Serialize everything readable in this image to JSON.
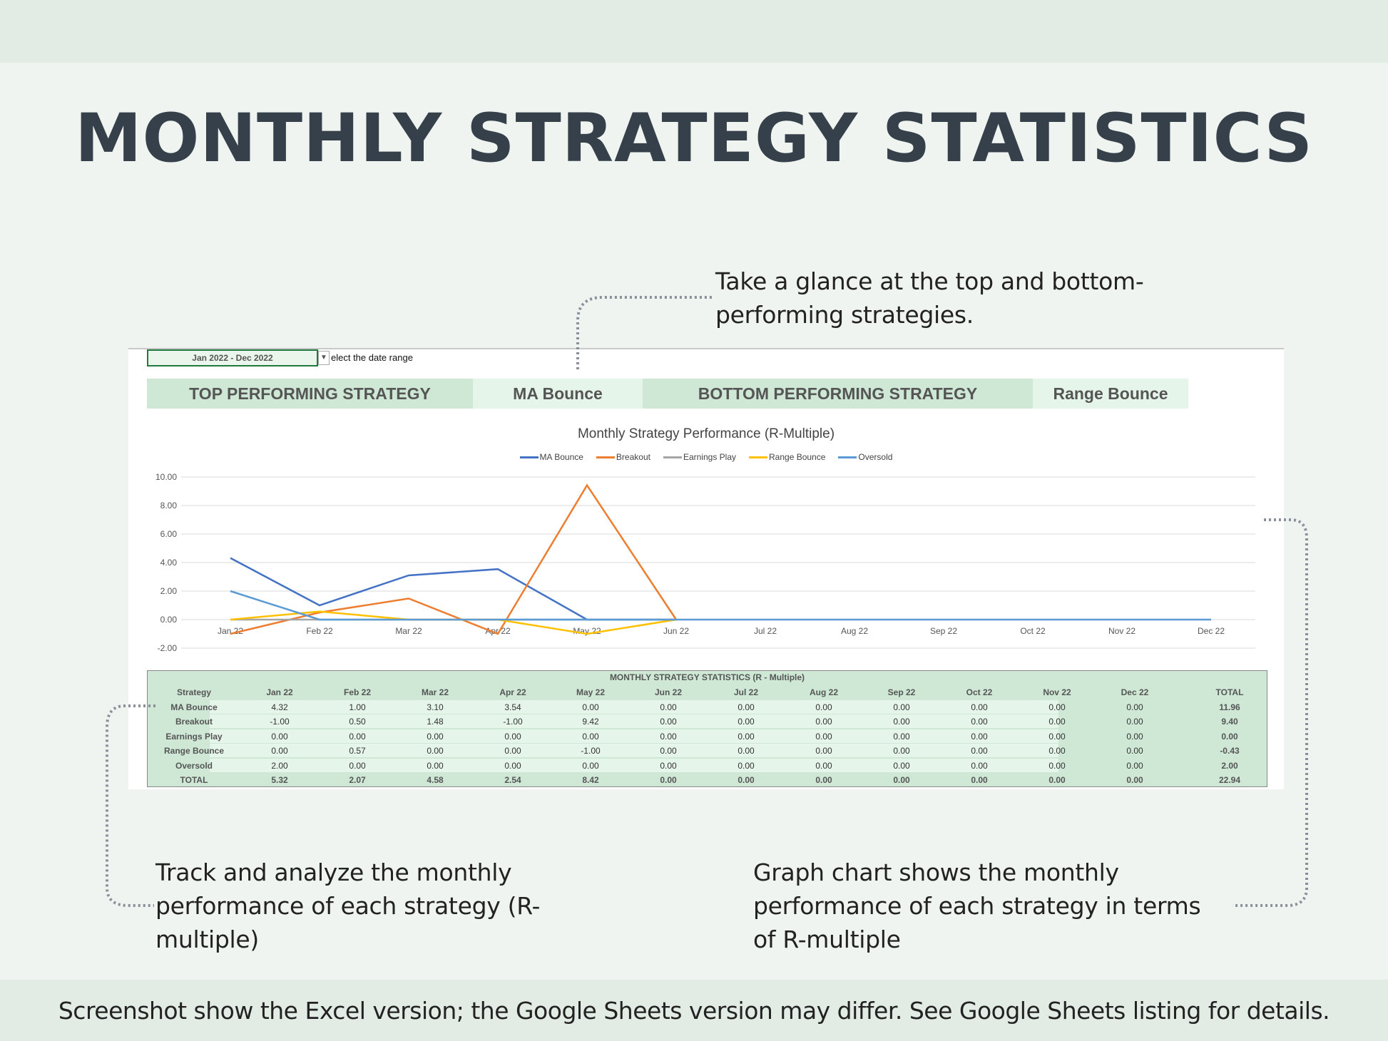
{
  "title": "MONTHLY STRATEGY STATISTICS",
  "notes": {
    "top": [
      "Take a glance at the top and bottom-",
      "performing strategies."
    ],
    "left": [
      "Track and analyze the monthly",
      "performance of each strategy (R-",
      "multiple)"
    ],
    "right": [
      "Graph chart shows the monthly",
      "performance of each strategy in terms",
      "of R-multiple"
    ]
  },
  "footer": "Screenshot show the Excel version; the Google Sheets version may differ.   See Google Sheets listing for details.",
  "sheet": {
    "date_range": "Jan 2022 - Dec 2022",
    "date_hint": "elect the date range",
    "top_label": "TOP PERFORMING STRATEGY",
    "top_value": "MA Bounce",
    "bottom_label": "BOTTOM PERFORMING STRATEGY",
    "bottom_value": "Range Bounce"
  },
  "chart_data": {
    "type": "line",
    "title": "Monthly Strategy Performance (R-Multiple)",
    "categories": [
      "Jan 22",
      "Feb 22",
      "Mar 22",
      "Apr 22",
      "May 22",
      "Jun 22",
      "Jul 22",
      "Aug 22",
      "Sep 22",
      "Oct 22",
      "Nov 22",
      "Dec 22"
    ],
    "ylim": [
      -2,
      10
    ],
    "yticks": [
      "-2.00",
      "0.00",
      "2.00",
      "4.00",
      "6.00",
      "8.00",
      "10.00"
    ],
    "legend": "top",
    "series": [
      {
        "name": "MA Bounce",
        "color": "#4472c4",
        "values": [
          4.32,
          1.0,
          3.1,
          3.54,
          0,
          0,
          null,
          null,
          null,
          null,
          null,
          null
        ]
      },
      {
        "name": "Breakout",
        "color": "#ed7d31",
        "values": [
          -1.0,
          0.5,
          1.48,
          -1.0,
          9.42,
          0,
          null,
          null,
          null,
          null,
          null,
          null
        ]
      },
      {
        "name": "Earnings Play",
        "color": "#a5a5a5",
        "values": [
          0,
          0,
          0,
          0,
          0,
          0,
          null,
          null,
          null,
          null,
          null,
          null
        ]
      },
      {
        "name": "Range Bounce",
        "color": "#ffc000",
        "values": [
          0,
          0.57,
          0,
          0,
          -1.0,
          0,
          null,
          null,
          null,
          null,
          null,
          null
        ]
      },
      {
        "name": "Oversold",
        "color": "#5b9bd5",
        "values": [
          2.0,
          0,
          0,
          0,
          0,
          0,
          0,
          0,
          0,
          0,
          0,
          0
        ]
      }
    ]
  },
  "table": {
    "title": "MONTHLY STRATEGY STATISTICS (R - Multiple)",
    "headers": [
      "Strategy",
      "Jan 22",
      "Feb 22",
      "Mar 22",
      "Apr 22",
      "May 22",
      "Jun 22",
      "Jul 22",
      "Aug 22",
      "Sep 22",
      "Oct 22",
      "Nov 22",
      "Dec 22",
      "TOTAL"
    ],
    "rows": [
      [
        "MA Bounce",
        "4.32",
        "1.00",
        "3.10",
        "3.54",
        "0.00",
        "0.00",
        "0.00",
        "0.00",
        "0.00",
        "0.00",
        "0.00",
        "0.00",
        "11.96"
      ],
      [
        "Breakout",
        "-1.00",
        "0.50",
        "1.48",
        "-1.00",
        "9.42",
        "0.00",
        "0.00",
        "0.00",
        "0.00",
        "0.00",
        "0.00",
        "0.00",
        "9.40"
      ],
      [
        "Earnings Play",
        "0.00",
        "0.00",
        "0.00",
        "0.00",
        "0.00",
        "0.00",
        "0.00",
        "0.00",
        "0.00",
        "0.00",
        "0.00",
        "0.00",
        "0.00"
      ],
      [
        "Range Bounce",
        "0.00",
        "0.57",
        "0.00",
        "0.00",
        "-1.00",
        "0.00",
        "0.00",
        "0.00",
        "0.00",
        "0.00",
        "0.00",
        "0.00",
        "-0.43"
      ],
      [
        "Oversold",
        "2.00",
        "0.00",
        "0.00",
        "0.00",
        "0.00",
        "0.00",
        "0.00",
        "0.00",
        "0.00",
        "0.00",
        "0.00",
        "0.00",
        "2.00"
      ],
      [
        "TOTAL",
        "5.32",
        "2.07",
        "4.58",
        "2.54",
        "8.42",
        "0.00",
        "0.00",
        "0.00",
        "0.00",
        "0.00",
        "0.00",
        "0.00",
        "22.94"
      ]
    ]
  }
}
